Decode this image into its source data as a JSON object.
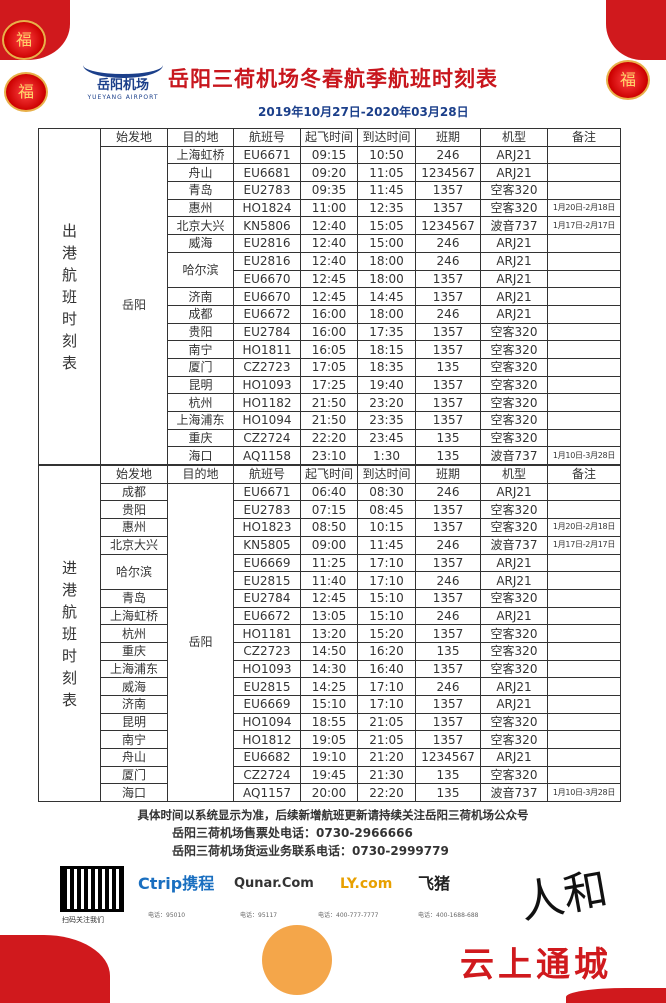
{
  "header": {
    "logo_name": "岳阳机场",
    "logo_en": "YUEYANG AIRPORT",
    "title": "岳阳三荷机场冬春航季航班时刻表",
    "date_range": "2019年10月27日-2020年03月28日",
    "lantern_char": "福"
  },
  "columns": [
    "始发地",
    "目的地",
    "航班号",
    "起飞时间",
    "到达时间",
    "班期",
    "机型",
    "备注"
  ],
  "colors": {
    "accent": "#c8161d",
    "brand": "#1b3f8a"
  },
  "departures": {
    "label": "出港航班时刻表",
    "origin": "岳阳",
    "rows": [
      [
        "上海虹桥",
        "EU6671",
        "09:15",
        "10:50",
        "246",
        "ARJ21",
        ""
      ],
      [
        "舟山",
        "EU6681",
        "09:20",
        "11:05",
        "1234567",
        "ARJ21",
        ""
      ],
      [
        "青岛",
        "EU2783",
        "09:35",
        "11:45",
        "1357",
        "空客320",
        ""
      ],
      [
        "惠州",
        "HO1824",
        "11:00",
        "12:35",
        "1357",
        "空客320",
        "1月20日-2月18日"
      ],
      [
        "北京大兴",
        "KN5806",
        "12:40",
        "15:05",
        "1234567",
        "波音737",
        "1月17日-2月17日"
      ],
      [
        "威海",
        "EU2816",
        "12:40",
        "15:00",
        "246",
        "ARJ21",
        ""
      ],
      [
        "哈尔滨",
        "EU2816",
        "12:40",
        "18:00",
        "246",
        "ARJ21",
        ""
      ],
      [
        "",
        "EU6670",
        "12:45",
        "18:00",
        "1357",
        "ARJ21",
        ""
      ],
      [
        "济南",
        "EU6670",
        "12:45",
        "14:45",
        "1357",
        "ARJ21",
        ""
      ],
      [
        "成都",
        "EU6672",
        "16:00",
        "18:00",
        "246",
        "ARJ21",
        ""
      ],
      [
        "贵阳",
        "EU2784",
        "16:00",
        "17:35",
        "1357",
        "空客320",
        ""
      ],
      [
        "南宁",
        "HO1811",
        "16:05",
        "18:15",
        "1357",
        "空客320",
        ""
      ],
      [
        "厦门",
        "CZ2723",
        "17:05",
        "18:35",
        "135",
        "空客320",
        ""
      ],
      [
        "昆明",
        "HO1093",
        "17:25",
        "19:40",
        "1357",
        "空客320",
        ""
      ],
      [
        "杭州",
        "HO1182",
        "21:50",
        "23:20",
        "1357",
        "空客320",
        ""
      ],
      [
        "上海浦东",
        "HO1094",
        "21:50",
        "23:35",
        "1357",
        "空客320",
        ""
      ],
      [
        "重庆",
        "CZ2724",
        "22:20",
        "23:45",
        "135",
        "空客320",
        ""
      ],
      [
        "海口",
        "AQ1158",
        "23:10",
        "1:30",
        "135",
        "波音737",
        "1月10日-3月28日"
      ]
    ]
  },
  "arrivals": {
    "label": "进港航班时刻表",
    "destination": "岳阳",
    "rows": [
      [
        "成都",
        "EU6671",
        "06:40",
        "08:30",
        "246",
        "ARJ21",
        ""
      ],
      [
        "贵阳",
        "EU2783",
        "07:15",
        "08:45",
        "1357",
        "空客320",
        ""
      ],
      [
        "惠州",
        "HO1823",
        "08:50",
        "10:15",
        "1357",
        "空客320",
        "1月20日-2月18日"
      ],
      [
        "北京大兴",
        "KN5805",
        "09:00",
        "11:45",
        "246",
        "波音737",
        "1月17日-2月17日"
      ],
      [
        "哈尔滨",
        "EU6669",
        "11:25",
        "17:10",
        "1357",
        "ARJ21",
        ""
      ],
      [
        "",
        "EU2815",
        "11:40",
        "17:10",
        "246",
        "ARJ21",
        ""
      ],
      [
        "青岛",
        "EU2784",
        "12:45",
        "15:10",
        "1357",
        "空客320",
        ""
      ],
      [
        "上海虹桥",
        "EU6672",
        "13:05",
        "15:10",
        "246",
        "ARJ21",
        ""
      ],
      [
        "杭州",
        "HO1181",
        "13:20",
        "15:20",
        "1357",
        "空客320",
        ""
      ],
      [
        "重庆",
        "CZ2723",
        "14:50",
        "16:20",
        "135",
        "空客320",
        ""
      ],
      [
        "上海浦东",
        "HO1093",
        "14:30",
        "16:40",
        "1357",
        "空客320",
        ""
      ],
      [
        "威海",
        "EU2815",
        "14:25",
        "17:10",
        "246",
        "ARJ21",
        ""
      ],
      [
        "济南",
        "EU6669",
        "15:10",
        "17:10",
        "1357",
        "ARJ21",
        ""
      ],
      [
        "昆明",
        "HO1094",
        "18:55",
        "21:05",
        "1357",
        "空客320",
        ""
      ],
      [
        "南宁",
        "HO1812",
        "19:05",
        "21:05",
        "1357",
        "空客320",
        ""
      ],
      [
        "舟山",
        "EU6682",
        "19:10",
        "21:20",
        "1234567",
        "ARJ21",
        ""
      ],
      [
        "厦门",
        "CZ2724",
        "19:45",
        "21:30",
        "135",
        "空客320",
        ""
      ],
      [
        "海口",
        "AQ1157",
        "20:00",
        "22:20",
        "135",
        "波音737",
        "1月10日-3月28日"
      ]
    ]
  },
  "footer": {
    "notice": "具体时间以系统显示为准，后续新增航班更新请持续关注岳阳三荷机场公众号",
    "ticket_phone": "岳阳三荷机场售票处电话：0730-2966666",
    "cargo_phone": "岳阳三荷机场货运业务联系电话：0730-2999779",
    "qr_label": "扫码关注我们",
    "partners": [
      {
        "name": "Ctrip携程",
        "phone": "电话：95010"
      },
      {
        "name": "Qunar.Com",
        "phone": "电话：95117"
      },
      {
        "name": "LY.com",
        "phone": "电话：400-777-7777"
      },
      {
        "name": "飞猪",
        "phone": "电话：400-1688-688"
      }
    ],
    "watermark": "云上通城",
    "calligraphy": "人和"
  }
}
